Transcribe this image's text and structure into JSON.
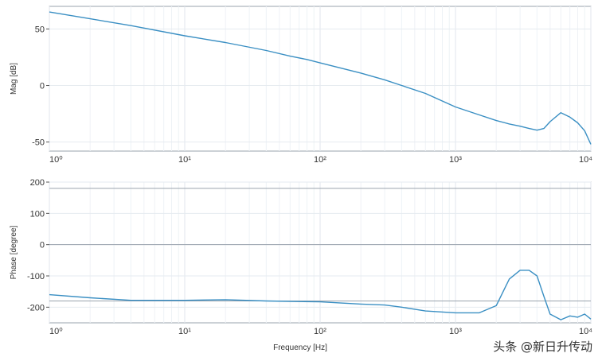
{
  "chart_data": [
    {
      "type": "line",
      "xscale": "log",
      "xlim": [
        1,
        10000
      ],
      "xticks": [
        1,
        10,
        100,
        1000,
        10000
      ],
      "xticklabels": [
        "10^0",
        "10^1",
        "10^2",
        "10^3",
        "10^4"
      ],
      "ylabel": "Mag [dB]",
      "ylim": [
        -58,
        70
      ],
      "yticks": [
        50,
        0,
        -50
      ],
      "yticklabels": [
        "50",
        "0",
        "-50"
      ],
      "grid": true,
      "series": [
        {
          "x": [
            1,
            2,
            4,
            10,
            20,
            40,
            60,
            80,
            100,
            200,
            300,
            400,
            600,
            1000,
            1500,
            2000,
            2500,
            3000,
            3500,
            4000,
            4500,
            5000,
            6000,
            7000,
            8000,
            9000,
            10000
          ],
          "y": [
            65,
            59,
            53,
            44,
            38,
            31,
            26,
            23,
            20,
            11,
            5,
            0,
            -7,
            -19,
            -26,
            -31,
            -34,
            -36,
            -38,
            -39.5,
            -38,
            -32,
            -24,
            -28,
            -33,
            -40,
            -52
          ],
          "color": "#3a8fc3"
        }
      ]
    },
    {
      "type": "line",
      "xscale": "log",
      "xlim": [
        1,
        10000
      ],
      "xticks": [
        1,
        10,
        100,
        1000,
        10000
      ],
      "xticklabels": [
        "10^0",
        "10^1",
        "10^2",
        "10^3",
        "10^4"
      ],
      "xlabel": "Frequency [Hz]",
      "ylabel": "Phase [degree]",
      "ylim": [
        -250,
        200
      ],
      "yticks": [
        200,
        100,
        0,
        -100,
        -200
      ],
      "yticklabels": [
        "200",
        "100",
        "0",
        "-100",
        "-200"
      ],
      "reference_lines": [
        180,
        0,
        -180
      ],
      "grid": true,
      "series": [
        {
          "x": [
            1,
            2,
            4,
            10,
            20,
            40,
            100,
            200,
            300,
            400,
            600,
            1000,
            1500,
            2000,
            2500,
            3000,
            3500,
            4000,
            4500,
            5000,
            6000,
            7000,
            8000,
            9000,
            10000
          ],
          "y": [
            -160,
            -170,
            -178,
            -178,
            -176,
            -180,
            -183,
            -190,
            -193,
            -200,
            -212,
            -218,
            -218,
            -195,
            -110,
            -82,
            -82,
            -100,
            -165,
            -222,
            -240,
            -228,
            -232,
            -222,
            -238
          ],
          "color": "#3a8fc3"
        }
      ]
    }
  ],
  "watermark": "头条 @新日升传动"
}
